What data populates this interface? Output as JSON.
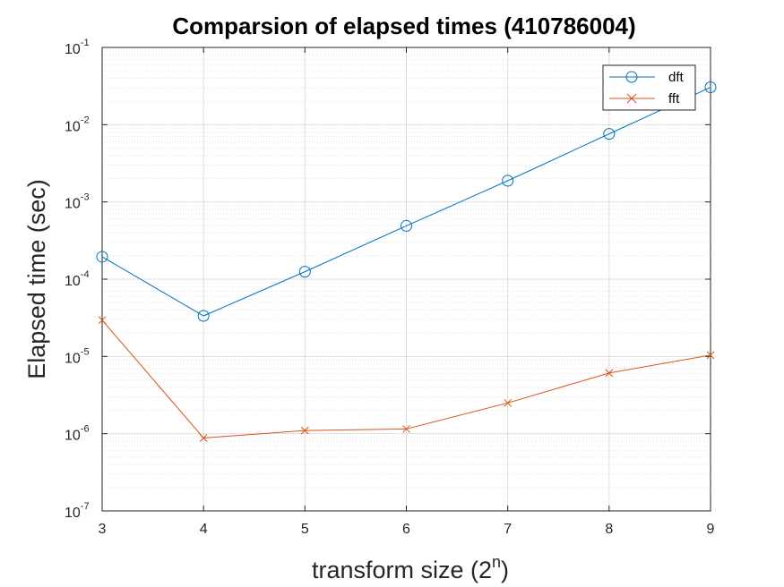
{
  "chart_data": {
    "type": "line",
    "title": "Comparsion of elapsed times (410786004)",
    "xlabel": "transform size (2",
    "xlabel_superscript": "n",
    "xlabel_suffix": ")",
    "ylabel": "Elapsed time (sec)",
    "x": [
      3,
      4,
      5,
      6,
      7,
      8,
      9
    ],
    "xlim": [
      3,
      9
    ],
    "ylim": [
      1e-07,
      0.1
    ],
    "yscale": "log",
    "grid": true,
    "minor_grid": true,
    "legend_position": "top-right",
    "ytick_base": "10",
    "yticks": [
      "-7",
      "-6",
      "-5",
      "-4",
      "-3",
      "-2",
      "-1"
    ],
    "xticks": [
      "3",
      "4",
      "5",
      "6",
      "7",
      "8",
      "9"
    ],
    "series": [
      {
        "name": "dft",
        "color": "#0072BD",
        "marker": "circle",
        "values": [
          0.000195,
          3.35e-05,
          0.000125,
          0.00049,
          0.00188,
          0.0076,
          0.0305
        ]
      },
      {
        "name": "fft",
        "color": "#D95319",
        "marker": "x",
        "values": [
          2.95e-05,
          8.8e-07,
          1.1e-06,
          1.15e-06,
          2.5e-06,
          6.1e-06,
          1.04e-05
        ]
      }
    ]
  }
}
